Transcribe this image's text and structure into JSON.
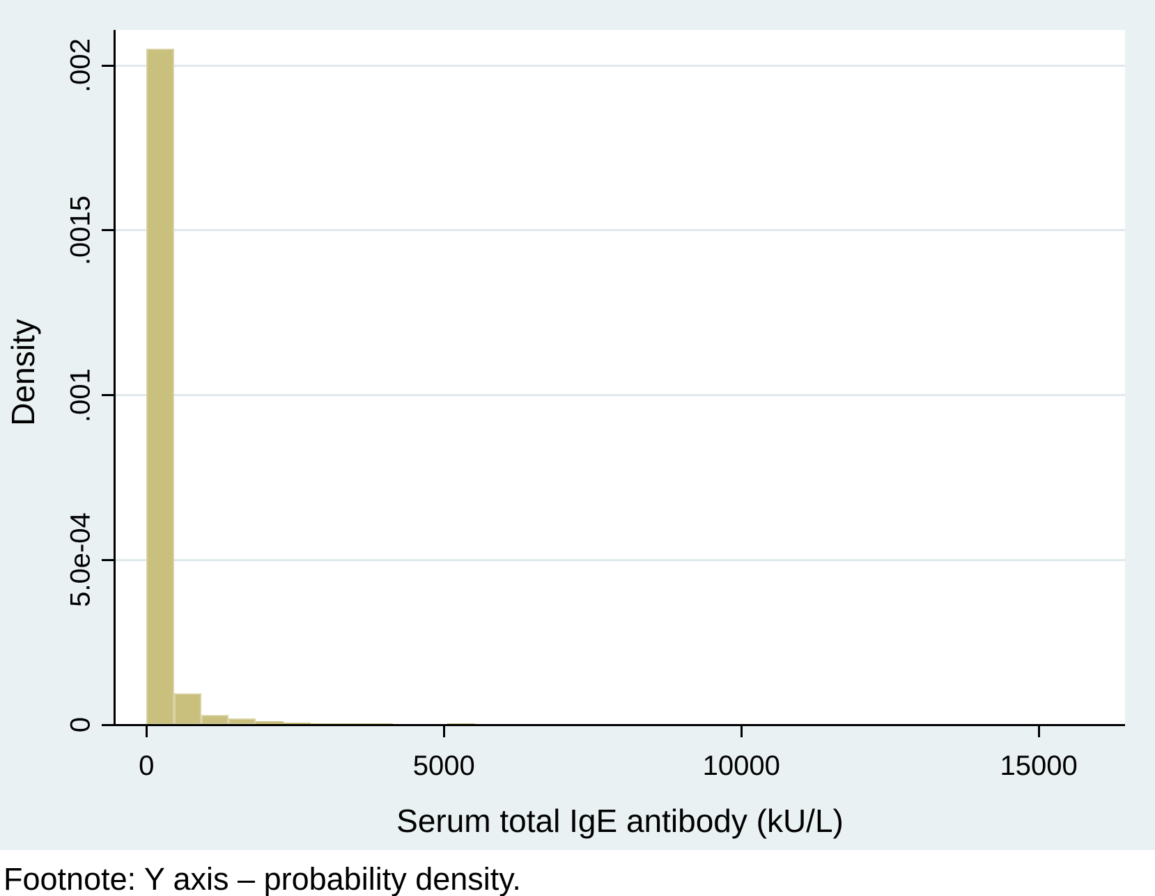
{
  "figure": {
    "background_color": "#eaf1f3",
    "plot_background_color": "#ffffff",
    "axis_color": "#000000",
    "footnote": "Footnote: Y axis – probability density."
  },
  "chart_data": {
    "type": "bar",
    "title": "",
    "xlabel": "Serum total IgE antibody (kU/L)",
    "ylabel": "Density",
    "xlim": [
      -530,
      16450
    ],
    "ylim": [
      0,
      0.002108
    ],
    "grid": "horizontal-only",
    "legend_position": "none",
    "grid_color": "#dfe9ec",
    "bar_color": "#c8c07c",
    "bar_border_color": "#d8d2a4",
    "x_ticks": [
      0,
      5000,
      10000,
      15000
    ],
    "x_tick_labels": [
      "0",
      "5000",
      "10000",
      "15000"
    ],
    "y_ticks": [
      0,
      0.0005,
      0.001,
      0.0015,
      0.002
    ],
    "y_tick_labels": [
      "0",
      "5.0e-04",
      ".001",
      ".0015",
      ".002"
    ],
    "bin_start": 0,
    "bin_width": 460,
    "bin_densities": [
      0.00205,
      9.5e-05,
      3e-05,
      1.9e-05,
      1e-05,
      6.5e-06,
      5e-06,
      4e-06,
      3.5e-06,
      3e-06,
      3e-06,
      3.5e-06,
      3e-06,
      2.5e-06,
      2e-06,
      2e-06,
      2.5e-06,
      2.5e-06,
      2e-06,
      0,
      0,
      0,
      0,
      0,
      0,
      0,
      0,
      0,
      0,
      0,
      0,
      0,
      0,
      0,
      2.5e-06
    ]
  }
}
